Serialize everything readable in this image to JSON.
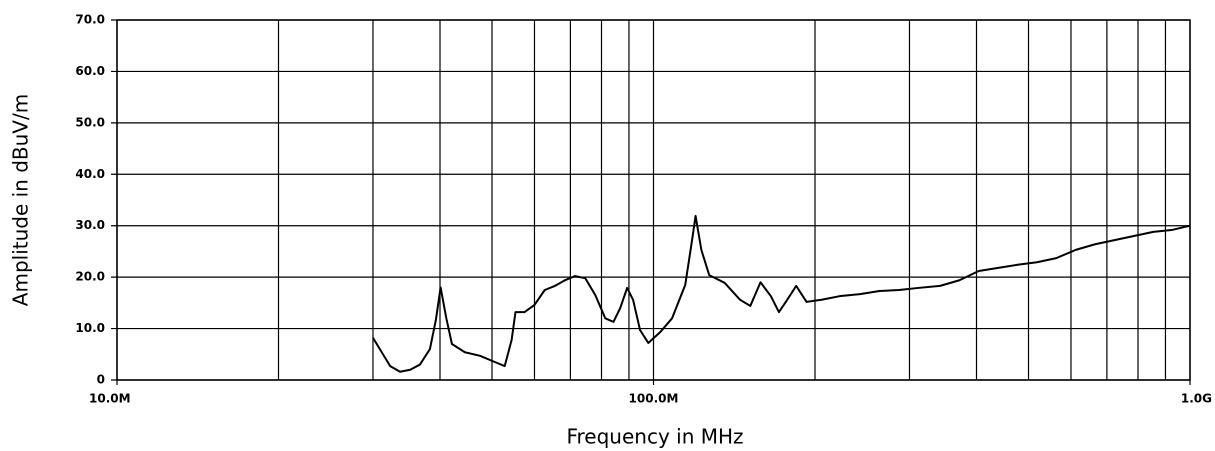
{
  "chart_data": {
    "type": "line",
    "xlabel": "Frequency in MHz",
    "ylabel": "Amplitude in dBuV/m",
    "xscale": "log",
    "xlim": [
      10,
      1000
    ],
    "ylim": [
      0,
      70
    ],
    "xticks": [
      {
        "value": 10,
        "label": "10.0M"
      },
      {
        "value": 100,
        "label": "100.0M"
      },
      {
        "value": 1000,
        "label": "1.0G"
      }
    ],
    "xgrid_minor": [
      20,
      30,
      40,
      50,
      60,
      70,
      80,
      90,
      200,
      300,
      400,
      500,
      600,
      700,
      800,
      900
    ],
    "yticks": [
      0,
      {
        "value": 10,
        "label": "10.0"
      },
      {
        "value": 20,
        "label": "20.0"
      },
      {
        "value": 30,
        "label": "30.0"
      },
      {
        "value": 40,
        "label": "40.0"
      },
      {
        "value": 50,
        "label": "50.0"
      },
      {
        "value": 60,
        "label": "60.0"
      },
      {
        "value": 70,
        "label": "70.0"
      }
    ],
    "grid": true,
    "color": "#000000",
    "x": [
      30.0,
      30.9,
      32.3,
      33.7,
      35.2,
      36.7,
      38.3,
      39.3,
      40.1,
      41.1,
      42.1,
      44.5,
      47.5,
      50.6,
      52.8,
      54.4,
      55.3,
      57.5,
      60.0,
      62.7,
      65.5,
      68.4,
      71.4,
      74.6,
      77.9,
      81.3,
      84.2,
      86.7,
      89.3,
      91.6,
      94.4,
      97.8,
      102.9,
      108.3,
      114.6,
      118.0,
      119.8,
      122.8,
      127.0,
      135.7,
      145.0,
      151.5,
      158.3,
      165.5,
      171.3,
      176.5,
      184.5,
      192.8,
      205.7,
      222.3,
      242.6,
      263.8,
      286.8,
      311.5,
      342.1,
      371.7,
      403.9,
      439.0,
      477.1,
      518.5,
      563.4,
      612.3,
      665.4,
      723.2,
      785.9,
      854.1,
      928.2,
      1000
    ],
    "values": [
      8.2,
      6.0,
      2.7,
      1.6,
      2.0,
      3.0,
      6.0,
      11.7,
      18.0,
      12.0,
      7.0,
      5.4,
      4.7,
      3.5,
      2.7,
      7.8,
      13.2,
      13.2,
      14.6,
      17.5,
      18.3,
      19.4,
      20.2,
      19.8,
      16.5,
      12.0,
      11.3,
      14.0,
      17.9,
      15.6,
      9.7,
      7.2,
      9.3,
      12.0,
      18.5,
      27.2,
      31.9,
      25.3,
      20.4,
      18.9,
      15.6,
      14.4,
      19.0,
      16.3,
      13.2,
      15.2,
      18.3,
      15.2,
      15.6,
      16.3,
      16.7,
      17.3,
      17.5,
      17.9,
      18.3,
      19.4,
      21.2,
      21.8,
      22.4,
      22.9,
      23.7,
      25.3,
      26.4,
      27.2,
      28.0,
      28.8,
      29.2,
      30.0
    ]
  }
}
